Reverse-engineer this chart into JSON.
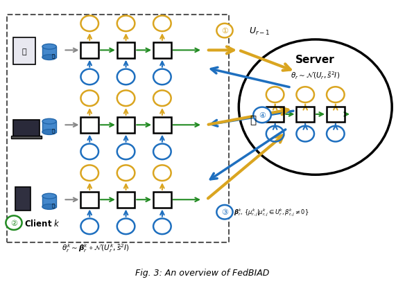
{
  "fig_width": 5.84,
  "fig_height": 4.14,
  "dpi": 100,
  "bg_color": "#ffffff",
  "gold_color": "#DAA520",
  "blue_color": "#1E6FBF",
  "green_color": "#228B22",
  "gray_color": "#888888",
  "black_color": "#000000",
  "title_text": "Fig. 3: An overview of FedBIAD",
  "server_text": "Server",
  "server_eq": "$\\theta_r\\sim\\mathcal{N}(U_r,\\tilde{s}^2I)$",
  "client_label": "\\textbf{Client} $k$",
  "client_eq": "$\\theta_r^k\\sim\\boldsymbol{\\beta}_r^k\\circ\\mathcal{N}(U_r^k,\\tilde{s}^2I)$",
  "arrow1_label": "$U_{r-1}$",
  "arrow3_label": "$\\boldsymbol{\\beta}_r^k$, $\\{\\mu_{r,j}^k|\\mu_{r,j}^k\\in U_r^k, \\beta_{r,j}^k\\neq 0\\}$"
}
